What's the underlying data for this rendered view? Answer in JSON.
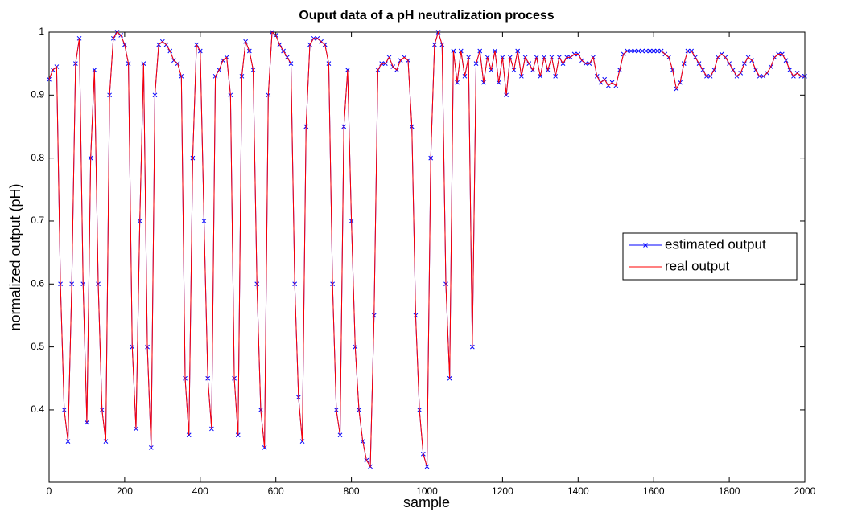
{
  "chart_data": {
    "type": "line",
    "title": "Ouput data of a pH neutralization process",
    "xlabel": "sample",
    "ylabel": "normalized output (pH)",
    "x": [
      0,
      10,
      20,
      30,
      40,
      50,
      60,
      70,
      80,
      90,
      100,
      110,
      120,
      130,
      140,
      150,
      160,
      170,
      180,
      190,
      200,
      210,
      220,
      230,
      240,
      250,
      260,
      270,
      280,
      290,
      300,
      310,
      320,
      330,
      340,
      350,
      360,
      370,
      380,
      390,
      400,
      410,
      420,
      430,
      440,
      450,
      460,
      470,
      480,
      490,
      500,
      510,
      520,
      530,
      540,
      550,
      560,
      570,
      580,
      590,
      600,
      610,
      620,
      630,
      640,
      650,
      660,
      670,
      680,
      690,
      700,
      710,
      720,
      730,
      740,
      750,
      760,
      770,
      780,
      790,
      800,
      810,
      820,
      830,
      840,
      850,
      860,
      870,
      880,
      890,
      900,
      910,
      920,
      930,
      940,
      950,
      960,
      970,
      980,
      990,
      1000,
      1010,
      1020,
      1030,
      1040,
      1050,
      1060,
      1070,
      1080,
      1090,
      1100,
      1110,
      1120,
      1130,
      1140,
      1150,
      1160,
      1170,
      1180,
      1190,
      1200,
      1210,
      1220,
      1230,
      1240,
      1250,
      1260,
      1270,
      1280,
      1290,
      1300,
      1310,
      1320,
      1330,
      1340,
      1350,
      1360,
      1370,
      1380,
      1390,
      1400,
      1410,
      1420,
      1430,
      1440,
      1450,
      1460,
      1470,
      1480,
      1490,
      1500,
      1510,
      1520,
      1530,
      1540,
      1550,
      1560,
      1570,
      1580,
      1590,
      1600,
      1610,
      1620,
      1630,
      1640,
      1650,
      1660,
      1670,
      1680,
      1690,
      1700,
      1710,
      1720,
      1730,
      1740,
      1750,
      1760,
      1770,
      1780,
      1790,
      1800,
      1810,
      1820,
      1830,
      1840,
      1850,
      1860,
      1870,
      1880,
      1890,
      1900,
      1910,
      1920,
      1930,
      1940,
      1950,
      1960,
      1970,
      1980,
      1990,
      2000
    ],
    "series": [
      {
        "name": "estimated output",
        "color": "#0000ff",
        "marker": "x",
        "values": [
          0.925,
          0.94,
          0.945,
          0.6,
          0.4,
          0.35,
          0.6,
          0.95,
          0.99,
          0.6,
          0.38,
          0.8,
          0.94,
          0.6,
          0.4,
          0.35,
          0.9,
          0.99,
          1.0,
          0.995,
          0.98,
          0.95,
          0.5,
          0.37,
          0.7,
          0.95,
          0.5,
          0.34,
          0.9,
          0.98,
          0.985,
          0.98,
          0.97,
          0.955,
          0.95,
          0.93,
          0.45,
          0.36,
          0.8,
          0.98,
          0.97,
          0.7,
          0.45,
          0.37,
          0.93,
          0.94,
          0.955,
          0.96,
          0.9,
          0.45,
          0.36,
          0.93,
          0.985,
          0.97,
          0.94,
          0.6,
          0.4,
          0.34,
          0.9,
          1.0,
          0.995,
          0.98,
          0.97,
          0.96,
          0.95,
          0.6,
          0.42,
          0.35,
          0.85,
          0.98,
          0.99,
          0.99,
          0.985,
          0.98,
          0.95,
          0.6,
          0.4,
          0.36,
          0.85,
          0.94,
          0.7,
          0.5,
          0.4,
          0.35,
          0.32,
          0.31,
          0.55,
          0.94,
          0.95,
          0.95,
          0.96,
          0.945,
          0.94,
          0.955,
          0.96,
          0.955,
          0.85,
          0.55,
          0.4,
          0.33,
          0.31,
          0.8,
          0.98,
          1.0,
          0.98,
          0.6,
          0.45,
          0.97,
          0.92,
          0.97,
          0.93,
          0.96,
          0.5,
          0.95,
          0.97,
          0.92,
          0.96,
          0.94,
          0.97,
          0.92,
          0.96,
          0.9,
          0.96,
          0.94,
          0.97,
          0.93,
          0.96,
          0.95,
          0.94,
          0.96,
          0.93,
          0.96,
          0.94,
          0.96,
          0.93,
          0.96,
          0.95,
          0.96,
          0.96,
          0.965,
          0.965,
          0.955,
          0.95,
          0.95,
          0.96,
          0.93,
          0.92,
          0.925,
          0.915,
          0.92,
          0.915,
          0.94,
          0.965,
          0.97,
          0.97,
          0.97,
          0.97,
          0.97,
          0.97,
          0.97,
          0.97,
          0.97,
          0.97,
          0.965,
          0.96,
          0.94,
          0.91,
          0.92,
          0.95,
          0.97,
          0.97,
          0.96,
          0.95,
          0.94,
          0.93,
          0.93,
          0.94,
          0.96,
          0.965,
          0.96,
          0.95,
          0.94,
          0.93,
          0.935,
          0.95,
          0.96,
          0.955,
          0.94,
          0.93,
          0.93,
          0.935,
          0.945,
          0.96,
          0.965,
          0.965,
          0.955,
          0.94,
          0.93,
          0.935,
          0.93,
          0.93
        ]
      },
      {
        "name": "real output",
        "color": "#ff0000",
        "values": [
          0.925,
          0.94,
          0.945,
          0.6,
          0.4,
          0.35,
          0.6,
          0.95,
          0.99,
          0.6,
          0.38,
          0.8,
          0.94,
          0.6,
          0.4,
          0.35,
          0.9,
          0.99,
          1.0,
          0.995,
          0.98,
          0.95,
          0.5,
          0.37,
          0.7,
          0.95,
          0.5,
          0.34,
          0.9,
          0.98,
          0.985,
          0.98,
          0.97,
          0.955,
          0.95,
          0.93,
          0.45,
          0.36,
          0.8,
          0.98,
          0.97,
          0.7,
          0.45,
          0.37,
          0.93,
          0.94,
          0.955,
          0.96,
          0.9,
          0.45,
          0.36,
          0.93,
          0.985,
          0.97,
          0.94,
          0.6,
          0.4,
          0.34,
          0.9,
          1.0,
          0.995,
          0.98,
          0.97,
          0.96,
          0.95,
          0.6,
          0.42,
          0.35,
          0.85,
          0.98,
          0.99,
          0.99,
          0.985,
          0.98,
          0.95,
          0.6,
          0.4,
          0.36,
          0.85,
          0.94,
          0.7,
          0.5,
          0.4,
          0.35,
          0.32,
          0.31,
          0.55,
          0.94,
          0.95,
          0.95,
          0.96,
          0.945,
          0.94,
          0.955,
          0.96,
          0.955,
          0.85,
          0.55,
          0.4,
          0.33,
          0.31,
          0.8,
          0.98,
          1.0,
          0.98,
          0.6,
          0.45,
          0.97,
          0.92,
          0.97,
          0.93,
          0.96,
          0.5,
          0.95,
          0.97,
          0.92,
          0.96,
          0.94,
          0.97,
          0.92,
          0.96,
          0.9,
          0.96,
          0.94,
          0.97,
          0.93,
          0.96,
          0.95,
          0.94,
          0.96,
          0.93,
          0.96,
          0.94,
          0.96,
          0.93,
          0.96,
          0.95,
          0.96,
          0.96,
          0.965,
          0.965,
          0.955,
          0.95,
          0.95,
          0.96,
          0.93,
          0.92,
          0.925,
          0.915,
          0.92,
          0.915,
          0.94,
          0.965,
          0.97,
          0.97,
          0.97,
          0.97,
          0.97,
          0.97,
          0.97,
          0.97,
          0.97,
          0.97,
          0.965,
          0.96,
          0.94,
          0.91,
          0.92,
          0.95,
          0.97,
          0.97,
          0.96,
          0.95,
          0.94,
          0.93,
          0.93,
          0.94,
          0.96,
          0.965,
          0.96,
          0.95,
          0.94,
          0.93,
          0.935,
          0.95,
          0.96,
          0.955,
          0.94,
          0.93,
          0.93,
          0.935,
          0.945,
          0.96,
          0.965,
          0.965,
          0.955,
          0.94,
          0.93,
          0.935,
          0.93,
          0.93
        ]
      }
    ],
    "xlim": [
      0,
      2000
    ],
    "xticks": [
      0,
      200,
      400,
      600,
      800,
      1000,
      1200,
      1400,
      1600,
      1800,
      2000
    ],
    "ylim": [
      0.285,
      1.0
    ],
    "yticks": [
      0.4,
      0.5,
      0.6,
      0.7,
      0.8,
      0.9,
      1
    ],
    "legend": "right",
    "grid": false
  }
}
